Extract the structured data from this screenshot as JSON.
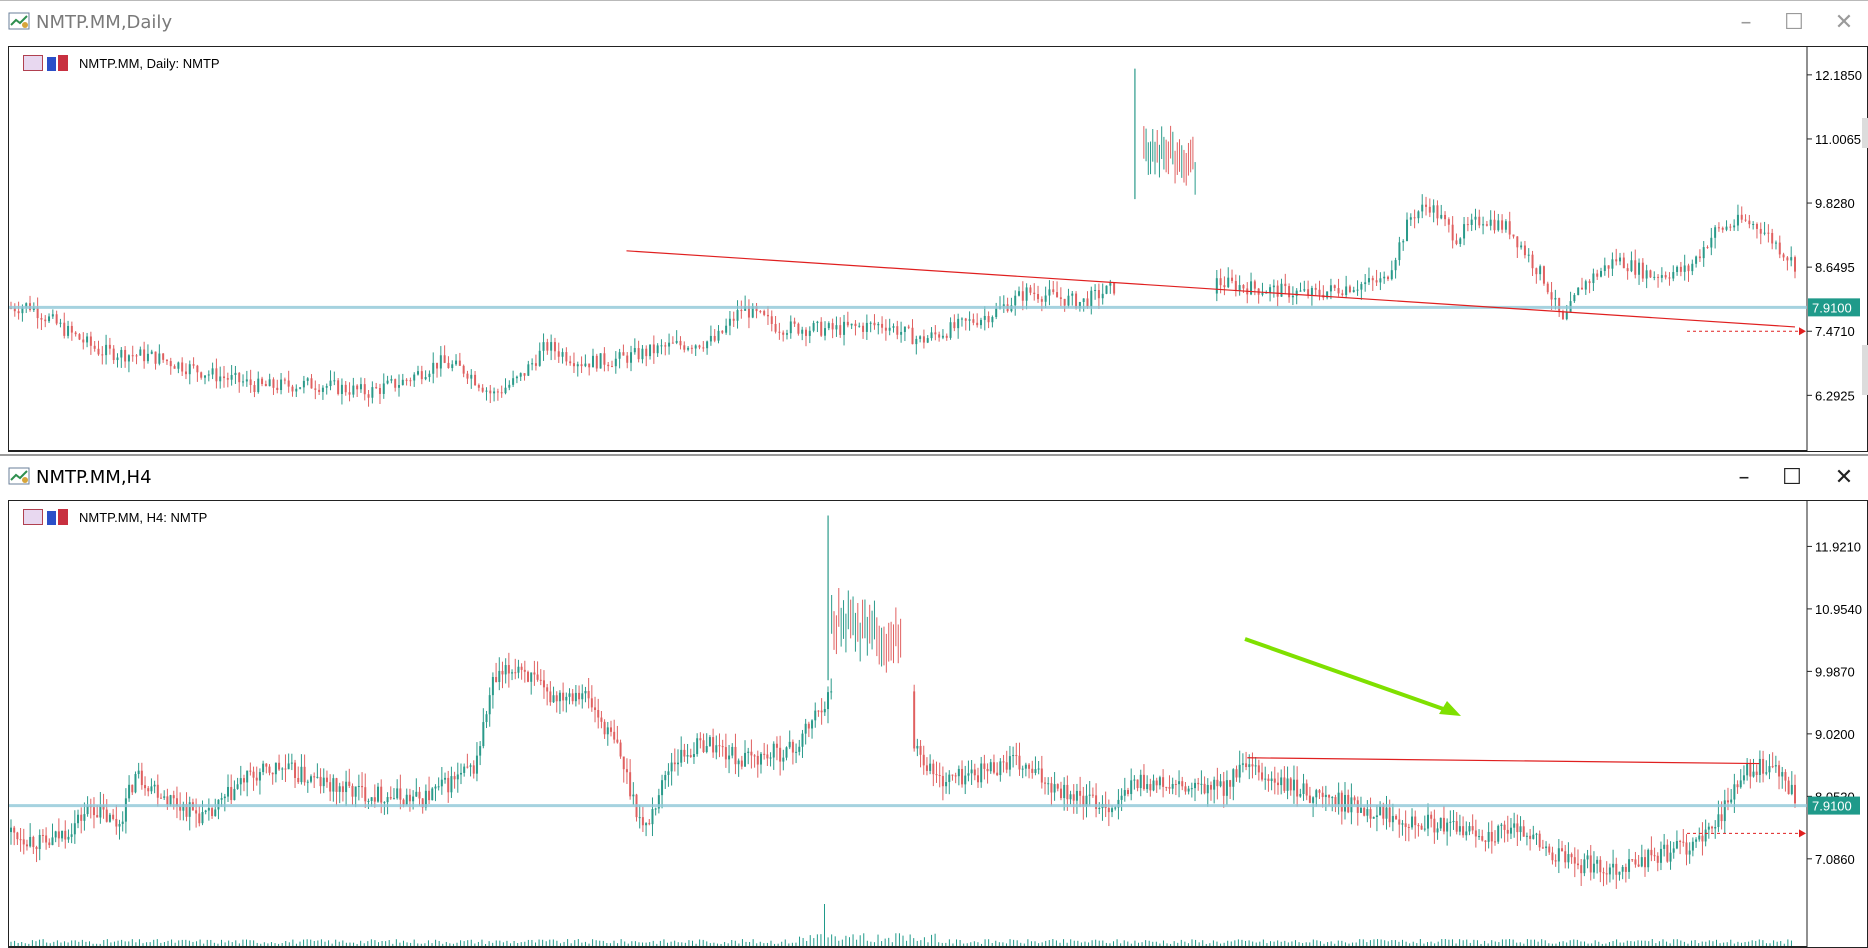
{
  "windows": [
    {
      "title": "NMTP.MM,Daily",
      "chart_label": "NMTP.MM, Daily:  NMTP",
      "active": false,
      "chart_data": {
        "type": "candlestick",
        "y_ticks": [
          "12.1850",
          "11.0065",
          "9.8280",
          "8.6495",
          "7.4710",
          "6.2925"
        ],
        "ylim": [
          5.6,
          12.55
        ],
        "current_price": "7.9100",
        "horizontal_line": 7.91,
        "trendline": {
          "from": [
            0.345,
            8.95
          ],
          "to": [
            1.0,
            7.55
          ]
        },
        "dotted_level": 7.47,
        "anchors": [
          [
            0,
            7.9
          ],
          [
            0.01,
            7.95
          ],
          [
            0.03,
            7.5
          ],
          [
            0.05,
            7.1
          ],
          [
            0.08,
            7.0
          ],
          [
            0.11,
            6.7
          ],
          [
            0.14,
            6.45
          ],
          [
            0.17,
            6.5
          ],
          [
            0.2,
            6.35
          ],
          [
            0.22,
            6.55
          ],
          [
            0.24,
            6.9
          ],
          [
            0.255,
            6.75
          ],
          [
            0.27,
            6.3
          ],
          [
            0.285,
            6.6
          ],
          [
            0.3,
            7.2
          ],
          [
            0.32,
            6.9
          ],
          [
            0.34,
            6.95
          ],
          [
            0.37,
            7.2
          ],
          [
            0.395,
            7.3
          ],
          [
            0.41,
            7.9
          ],
          [
            0.43,
            7.55
          ],
          [
            0.46,
            7.5
          ],
          [
            0.49,
            7.6
          ],
          [
            0.51,
            7.3
          ],
          [
            0.53,
            7.55
          ],
          [
            0.55,
            7.8
          ],
          [
            0.57,
            8.2
          ],
          [
            0.6,
            8.0
          ],
          [
            0.62,
            8.3
          ],
          [
            0.64,
            8.55
          ],
          [
            0.67,
            8.4
          ],
          [
            0.7,
            8.25
          ],
          [
            0.73,
            8.15
          ],
          [
            0.75,
            8.3
          ],
          [
            0.77,
            8.4
          ],
          [
            0.785,
            9.6
          ],
          [
            0.795,
            9.8
          ],
          [
            0.81,
            9.2
          ],
          [
            0.825,
            9.55
          ],
          [
            0.84,
            9.35
          ],
          [
            0.86,
            8.4
          ],
          [
            0.87,
            7.6
          ],
          [
            0.88,
            8.3
          ],
          [
            0.9,
            8.8
          ],
          [
            0.92,
            8.5
          ],
          [
            0.94,
            8.6
          ],
          [
            0.955,
            9.3
          ],
          [
            0.97,
            9.5
          ],
          [
            0.98,
            9.4
          ],
          [
            1.0,
            8.7
          ]
        ]
      }
    },
    {
      "title": "NMTP.MM,H4",
      "chart_label": "NMTP.MM, H4:  NMTP",
      "active": true,
      "chart_data": {
        "type": "candlestick",
        "y_ticks": [
          "11.9210",
          "10.9540",
          "9.9870",
          "9.0200",
          "8.0530",
          "7.0860"
        ],
        "ylim": [
          6.65,
          12.5
        ],
        "current_price": "7.9100",
        "horizontal_line": 7.91,
        "trendline": {
          "from": [
            0.693,
            8.65
          ],
          "to": [
            0.98,
            8.56
          ]
        },
        "dotted_level": 7.48,
        "anchors": [
          [
            0,
            7.5
          ],
          [
            0.02,
            7.3
          ],
          [
            0.035,
            7.6
          ],
          [
            0.045,
            7.9
          ],
          [
            0.06,
            7.6
          ],
          [
            0.07,
            8.4
          ],
          [
            0.09,
            8.0
          ],
          [
            0.11,
            7.7
          ],
          [
            0.13,
            8.3
          ],
          [
            0.15,
            8.5
          ],
          [
            0.18,
            8.2
          ],
          [
            0.2,
            8.1
          ],
          [
            0.23,
            8.0
          ],
          [
            0.26,
            8.5
          ],
          [
            0.27,
            9.8
          ],
          [
            0.285,
            10.1
          ],
          [
            0.3,
            9.6
          ],
          [
            0.32,
            9.7
          ],
          [
            0.34,
            8.8
          ],
          [
            0.355,
            7.5
          ],
          [
            0.37,
            8.6
          ],
          [
            0.39,
            8.9
          ],
          [
            0.41,
            8.6
          ],
          [
            0.44,
            8.8
          ],
          [
            0.455,
            9.5
          ],
          [
            0.47,
            9.9
          ],
          [
            0.485,
            9.3
          ],
          [
            0.5,
            9.25
          ],
          [
            0.51,
            8.7
          ],
          [
            0.52,
            8.3
          ],
          [
            0.54,
            8.4
          ],
          [
            0.56,
            8.6
          ],
          [
            0.6,
            8.0
          ],
          [
            0.62,
            7.9
          ],
          [
            0.63,
            8.3
          ],
          [
            0.66,
            8.15
          ],
          [
            0.68,
            8.2
          ],
          [
            0.69,
            8.5
          ],
          [
            0.71,
            8.25
          ],
          [
            0.74,
            8.0
          ],
          [
            0.77,
            7.8
          ],
          [
            0.8,
            7.6
          ],
          [
            0.83,
            7.45
          ],
          [
            0.85,
            7.55
          ],
          [
            0.86,
            7.2
          ],
          [
            0.88,
            7.0
          ],
          [
            0.9,
            6.95
          ],
          [
            0.93,
            7.2
          ],
          [
            0.95,
            7.4
          ],
          [
            0.965,
            8.1
          ],
          [
            0.975,
            8.5
          ],
          [
            0.99,
            8.45
          ],
          [
            1.0,
            8.0
          ]
        ]
      }
    }
  ]
}
